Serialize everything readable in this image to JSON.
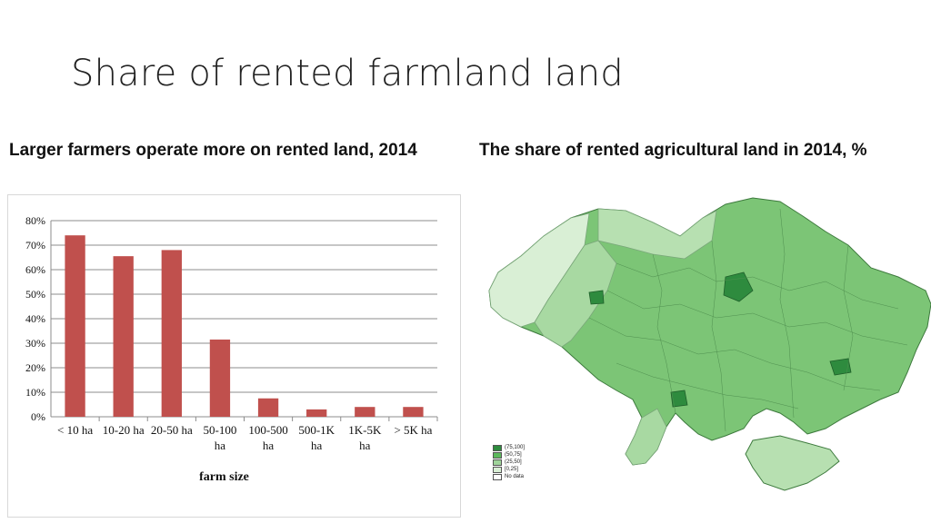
{
  "slide": {
    "title": "Share of rented farmland land",
    "left_heading": "Larger farmers operate more on rented land, 2014",
    "right_heading": "The share of rented agricultural land in 2014, %"
  },
  "chart_data": {
    "type": "bar",
    "categories": [
      "< 10 ha",
      "10-20 ha",
      "20-50 ha",
      "50-100 ha",
      "100-500 ha",
      "500-1K ha",
      "1K-5K ha",
      "> 5K ha"
    ],
    "category_lines": [
      [
        "< 10 ha"
      ],
      [
        "10-20 ha"
      ],
      [
        "20-50 ha"
      ],
      [
        "50-100",
        "ha"
      ],
      [
        "100-500",
        "ha"
      ],
      [
        "500-1K",
        "ha"
      ],
      [
        "1K-5K",
        "ha"
      ],
      [
        "> 5K ha"
      ]
    ],
    "values": [
      74,
      65.5,
      68,
      31.5,
      7.5,
      3,
      4,
      4
    ],
    "title": "",
    "xlabel": "farm size",
    "ylabel": "",
    "ylim": [
      0,
      80
    ],
    "yticks": [
      0,
      10,
      20,
      30,
      40,
      50,
      60,
      70,
      80
    ],
    "ytick_labels": [
      "0%",
      "10%",
      "20%",
      "30%",
      "40%",
      "50%",
      "60%",
      "70%",
      "80%"
    ],
    "grid": true,
    "bar_color": "#c0504d"
  },
  "map": {
    "legend": [
      {
        "label": "(75,100]",
        "color": "#2e8b3e"
      },
      {
        "label": "(50,75]",
        "color": "#5cb85c"
      },
      {
        "label": "(25,50]",
        "color": "#9fd49a"
      },
      {
        "label": "[0,25]",
        "color": "#d9efd5"
      },
      {
        "label": "No data",
        "color": "#ffffff"
      }
    ]
  }
}
